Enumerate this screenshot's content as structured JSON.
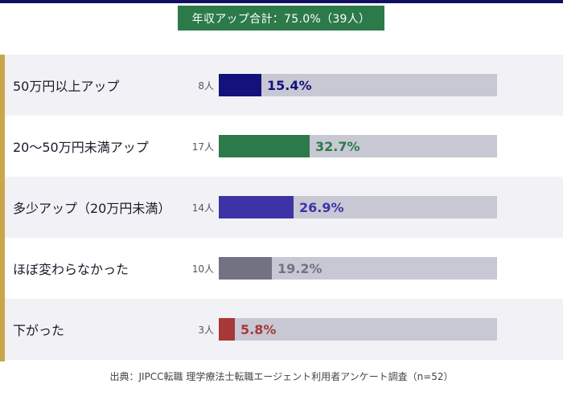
{
  "header": {
    "summary": "年収アップ合計：75.0%（39人）"
  },
  "chart_data": {
    "type": "bar",
    "orientation": "horizontal",
    "title": "年収アップ合計：75.0%（39人）",
    "categories": [
      "50万円以上アップ",
      "20〜50万円未満アップ",
      "多少アップ（20万円未満）",
      "ほぼ変わらなかった",
      "下がった"
    ],
    "counts": [
      "8人",
      "17人",
      "14人",
      "10人",
      "3人"
    ],
    "values": [
      15.4,
      32.7,
      26.9,
      19.2,
      5.8
    ],
    "value_labels": [
      "15.4%",
      "32.7%",
      "26.9%",
      "19.2%",
      "5.8%"
    ],
    "colors": [
      "#14127a",
      "#2c7a49",
      "#3e33a6",
      "#727282",
      "#a83838"
    ],
    "xlim": [
      0,
      100
    ]
  },
  "footer": {
    "source": "出典：JIPCC転職 理学療法士転職エージェント利用者アンケート調査（n=52）"
  }
}
